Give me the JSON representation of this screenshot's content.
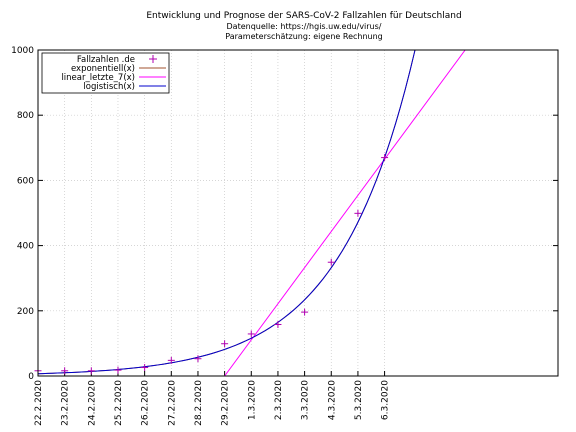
{
  "chart_data": {
    "type": "scatter",
    "title": "Entwicklung und Prognose der SARS-CoV-2 Fallzahlen für Deutschland",
    "subtitles": [
      "Datenquelle: https://hgis.uw.edu/virus/",
      "Parameterschätzung: eigene Rechnung"
    ],
    "xlabel": "",
    "ylabel": "",
    "ylim": [
      0,
      1000
    ],
    "yticks": [
      0,
      200,
      400,
      600,
      800,
      1000
    ],
    "xlim": [
      0,
      13
    ],
    "xtick_labels": [
      "22.2.2020",
      "23.2.2020",
      "24.2.2020",
      "25.2.2020",
      "26.2.2020",
      "27.2.2020",
      "28.2.2020",
      "29.2.2020",
      "1.3.2020",
      "2.3.2020",
      "3.3.2020",
      "4.3.2020",
      "5.3.2020",
      "6.3.2020"
    ],
    "grid": true,
    "legend_position": "top-left",
    "series": [
      {
        "name": "Fallzahlen .de",
        "kind": "points",
        "marker": "+",
        "color": "#b000b0",
        "x": [
          "22.2.2020",
          "23.2.2020",
          "24.2.2020",
          "25.2.2020",
          "26.2.2020",
          "27.2.2020",
          "28.2.2020",
          "29.2.2020",
          "1.3.2020",
          "2.3.2020",
          "3.3.2020",
          "4.3.2020",
          "5.3.2020",
          "6.3.2020"
        ],
        "y": [
          16,
          16,
          16,
          18,
          26,
          48,
          53,
          99,
          129,
          158,
          196,
          349,
          499,
          670
        ]
      },
      {
        "name": "exponentiell(x)",
        "kind": "line",
        "color": "#a0522d",
        "x": [
          "22.2.2020",
          "23.2.2020",
          "24.2.2020",
          "25.2.2020",
          "26.2.2020",
          "27.2.2020",
          "28.2.2020",
          "29.2.2020",
          "1.3.2020",
          "2.3.2020",
          "3.3.2020",
          "4.3.2020",
          "5.3.2020",
          "6.3.2020"
        ],
        "y": [
          7,
          10,
          13,
          18,
          25,
          35,
          48,
          66,
          92,
          127,
          176,
          245,
          340,
          670
        ]
      },
      {
        "name": "linear_letzte_7(x)",
        "kind": "line",
        "color": "#ff00ff",
        "x": [
          "29.2.2020",
          "6.3.2020"
        ],
        "y": [
          0,
          665
        ]
      },
      {
        "name": "logistisch(x)",
        "kind": "line",
        "color": "#0000cc",
        "x": [
          "22.2.2020",
          "23.2.2020",
          "24.2.2020",
          "25.2.2020",
          "26.2.2020",
          "27.2.2020",
          "28.2.2020",
          "29.2.2020",
          "1.3.2020",
          "2.3.2020",
          "3.3.2020",
          "4.3.2020",
          "5.3.2020",
          "6.3.2020"
        ],
        "y": [
          7,
          10,
          13,
          18,
          25,
          35,
          48,
          66,
          92,
          127,
          176,
          245,
          340,
          670
        ]
      }
    ]
  }
}
